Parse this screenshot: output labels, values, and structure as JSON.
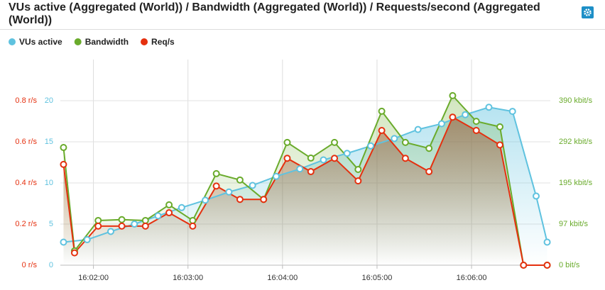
{
  "chart_data": {
    "type": "line",
    "title": "VUs active (Aggregated (World)) / Bandwidth (Aggregated (World)) / Requests/second (Aggregated (World))",
    "xlim": [
      "16:01:39",
      "16:06:50"
    ],
    "xticks": [
      "16:02:00",
      "16:03:00",
      "16:04:00",
      "16:05:00",
      "16:06:00"
    ],
    "ylim": [
      0,
      1
    ],
    "yticks": [
      {
        "value": 0,
        "label": "0 r/s"
      },
      {
        "value": 0.2,
        "label": "0.2 r/s"
      },
      {
        "value": 0.4,
        "label": "0.4 r/s"
      },
      {
        "value": 0.6,
        "label": "0.6 r/s"
      },
      {
        "value": 0.8,
        "label": "0.8 r/s"
      }
    ],
    "y3lim": [
      0,
      25
    ],
    "y3ticks": [
      0,
      5,
      10,
      15,
      20
    ],
    "y2lim": [
      0,
      487.5
    ],
    "y2ticks": [
      {
        "value": 0,
        "label": "0 bit/s"
      },
      {
        "value": 97,
        "label": "97 kbit/s"
      },
      {
        "value": 195,
        "label": "195 kbit/s"
      },
      {
        "value": 292,
        "label": "292 kbit/s"
      },
      {
        "value": 390,
        "label": "390 kbit/s"
      }
    ],
    "grid": true,
    "legend": "top-left",
    "series": [
      {
        "name": "VUs active",
        "color": "#5fc2df",
        "axis": "y3",
        "x": [
          "16:01:41",
          "16:01:56",
          "16:02:11",
          "16:02:26",
          "16:02:41",
          "16:02:56",
          "16:03:11",
          "16:03:26",
          "16:03:41",
          "16:03:56",
          "16:04:11",
          "16:04:26",
          "16:04:41",
          "16:04:56",
          "16:05:11",
          "16:05:26",
          "16:05:41",
          "16:05:56",
          "16:06:11",
          "16:06:26",
          "16:06:41",
          "16:06:48"
        ],
        "values": [
          2.8,
          3.1,
          4.1,
          5,
          6,
          7,
          7.9,
          8.9,
          9.7,
          10.8,
          11.7,
          12.8,
          13.6,
          14.5,
          15.4,
          16.5,
          17.2,
          18.3,
          19.2,
          18.7,
          8.4,
          2.8
        ]
      },
      {
        "name": "Bandwidth",
        "color": "#6aab2c",
        "axis": "y2",
        "x": [
          "16:01:41",
          "16:01:48",
          "16:02:03",
          "16:02:18",
          "16:02:33",
          "16:02:48",
          "16:03:03",
          "16:03:18",
          "16:03:33",
          "16:03:48",
          "16:04:03",
          "16:04:18",
          "16:04:33",
          "16:04:48",
          "16:05:03",
          "16:05:18",
          "16:05:33",
          "16:05:48",
          "16:06:03",
          "16:06:18",
          "16:06:33",
          "16:06:48"
        ],
        "values": [
          279,
          34,
          106,
          108,
          106,
          143,
          106,
          217,
          202,
          156,
          291,
          254,
          291,
          227,
          365,
          291,
          277,
          402,
          341,
          328,
          0,
          0
        ]
      },
      {
        "name": "Req/s",
        "color": "#e5300f",
        "axis": "y",
        "x": [
          "16:01:41",
          "16:01:48",
          "16:02:03",
          "16:02:18",
          "16:02:33",
          "16:02:48",
          "16:03:03",
          "16:03:18",
          "16:03:33",
          "16:03:48",
          "16:04:03",
          "16:04:18",
          "16:04:33",
          "16:04:48",
          "16:05:03",
          "16:05:18",
          "16:05:33",
          "16:05:48",
          "16:06:03",
          "16:06:18",
          "16:06:33",
          "16:06:48"
        ],
        "values": [
          0.49,
          0.06,
          0.19,
          0.19,
          0.19,
          0.255,
          0.19,
          0.385,
          0.32,
          0.32,
          0.52,
          0.455,
          0.52,
          0.41,
          0.655,
          0.52,
          0.455,
          0.72,
          0.655,
          0.585,
          0,
          0
        ]
      }
    ]
  }
}
